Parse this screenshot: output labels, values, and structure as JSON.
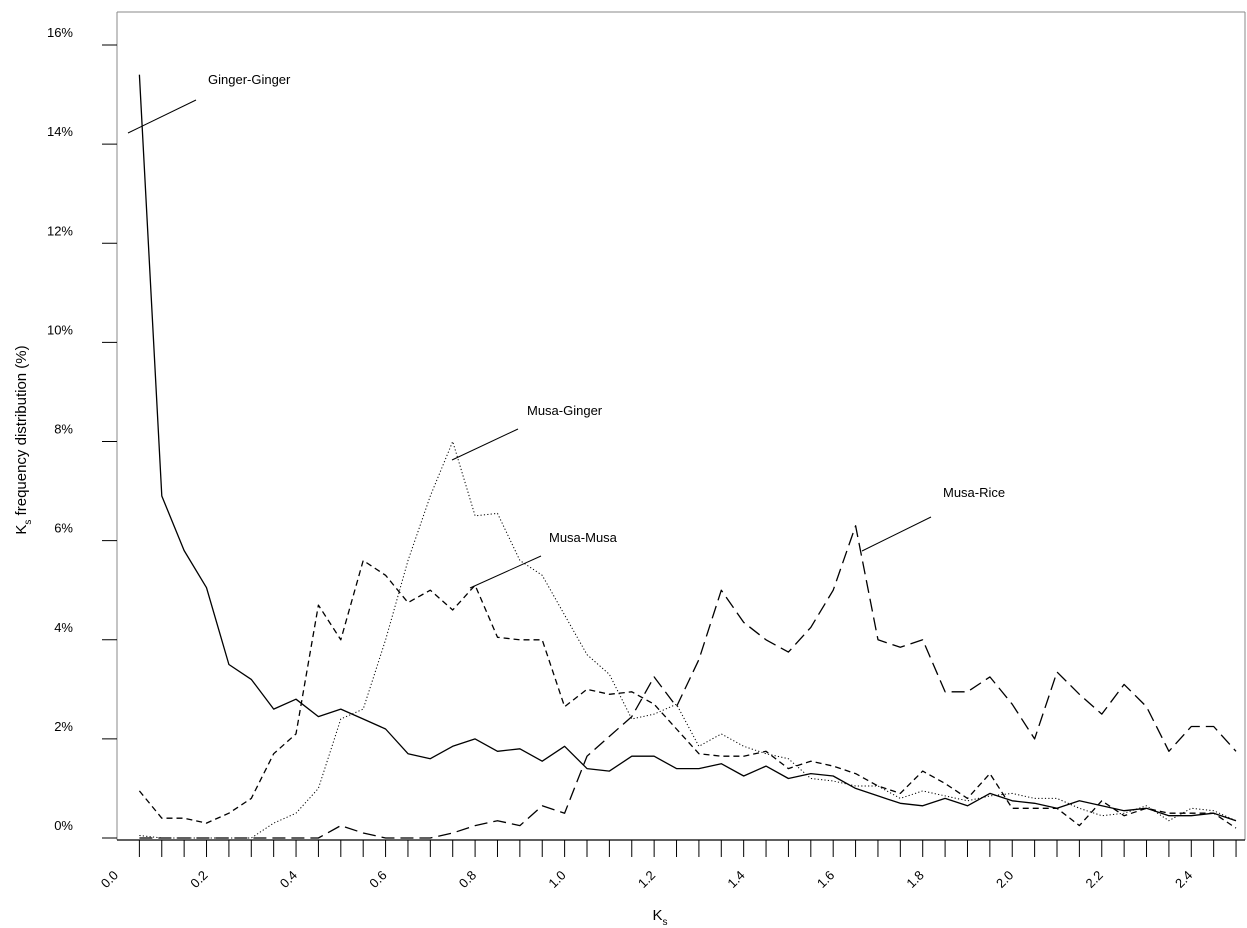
{
  "chart_data": {
    "type": "line",
    "xlabel": "K",
    "xlabel_sub": "s",
    "ylabel_prefix": "K",
    "ylabel_sub": "s",
    "ylabel_rest": " frequency distribution (%)",
    "xlim": [
      0.0,
      2.52
    ],
    "ylim": [
      0,
      16
    ],
    "x_ticks": [
      "0.0",
      "0.2",
      "0.4",
      "0.6",
      "0.8",
      "1.0",
      "1.2",
      "1.4",
      "1.6",
      "1.8",
      "2.0",
      "2.2",
      "2.4"
    ],
    "y_ticks": [
      "0%",
      "2%",
      "4%",
      "6%",
      "8%",
      "10%",
      "12%",
      "14%",
      "16%"
    ],
    "grid": false,
    "x": [
      0.05,
      0.1,
      0.15,
      0.2,
      0.25,
      0.3,
      0.35,
      0.4,
      0.45,
      0.5,
      0.55,
      0.6,
      0.65,
      0.7,
      0.75,
      0.8,
      0.85,
      0.9,
      0.95,
      1.0,
      1.05,
      1.1,
      1.15,
      1.2,
      1.25,
      1.3,
      1.35,
      1.4,
      1.45,
      1.5,
      1.55,
      1.6,
      1.65,
      1.7,
      1.75,
      1.8,
      1.85,
      1.9,
      1.95,
      2.0,
      2.05,
      2.1,
      2.15,
      2.2,
      2.25,
      2.3,
      2.35,
      2.4,
      2.45,
      2.5
    ],
    "series": [
      {
        "name": "Ginger-Ginger",
        "style": "solid",
        "values": [
          15.4,
          6.9,
          5.8,
          5.05,
          3.5,
          3.2,
          2.6,
          2.8,
          2.45,
          2.6,
          2.4,
          2.2,
          1.7,
          1.6,
          1.85,
          2.0,
          1.75,
          1.8,
          1.55,
          1.85,
          1.4,
          1.35,
          1.65,
          1.65,
          1.4,
          1.4,
          1.5,
          1.25,
          1.45,
          1.2,
          1.3,
          1.25,
          1.0,
          0.85,
          0.7,
          0.65,
          0.8,
          0.65,
          0.9,
          0.75,
          0.7,
          0.6,
          0.75,
          0.65,
          0.55,
          0.6,
          0.45,
          0.45,
          0.5,
          0.35
        ]
      },
      {
        "name": "Musa-Musa",
        "style": "short-dash",
        "values": [
          0.95,
          0.4,
          0.4,
          0.3,
          0.5,
          0.8,
          1.7,
          2.1,
          4.7,
          4.0,
          5.6,
          5.3,
          4.75,
          5.0,
          4.6,
          5.1,
          4.05,
          4.0,
          4.0,
          2.65,
          3.0,
          2.9,
          2.95,
          2.7,
          2.2,
          1.7,
          1.65,
          1.65,
          1.75,
          1.4,
          1.55,
          1.45,
          1.3,
          1.05,
          0.9,
          1.35,
          1.1,
          0.8,
          1.3,
          0.6,
          0.6,
          0.6,
          0.25,
          0.75,
          0.45,
          0.6,
          0.5,
          0.5,
          0.5,
          0.2
        ]
      },
      {
        "name": "Musa-Ginger",
        "style": "dotted",
        "values": [
          0.05,
          0.0,
          0.0,
          0.0,
          0.0,
          0.0,
          0.3,
          0.5,
          1.0,
          2.4,
          2.6,
          4.0,
          5.6,
          6.9,
          8.0,
          6.5,
          6.55,
          5.6,
          5.3,
          4.5,
          3.7,
          3.3,
          2.4,
          2.5,
          2.7,
          1.85,
          2.1,
          1.85,
          1.7,
          1.6,
          1.2,
          1.15,
          1.05,
          1.05,
          0.8,
          0.95,
          0.85,
          0.75,
          0.85,
          0.9,
          0.8,
          0.8,
          0.6,
          0.45,
          0.5,
          0.65,
          0.35,
          0.6,
          0.55,
          0.35
        ]
      },
      {
        "name": "Musa-Rice",
        "style": "long-dash",
        "values": [
          0.0,
          0.0,
          0.0,
          0.0,
          0.0,
          0.0,
          0.0,
          0.0,
          0.0,
          0.25,
          0.1,
          0.0,
          0.0,
          0.0,
          0.1,
          0.25,
          0.35,
          0.25,
          0.65,
          0.5,
          1.65,
          2.05,
          2.45,
          3.25,
          2.65,
          3.6,
          5.0,
          4.35,
          4.0,
          3.75,
          4.25,
          5.0,
          6.3,
          4.0,
          3.85,
          4.0,
          2.95,
          2.95,
          3.25,
          2.7,
          2.0,
          3.35,
          2.9,
          2.5,
          3.1,
          2.65,
          1.75,
          2.25,
          2.25,
          1.75
        ]
      }
    ],
    "annotations": [
      {
        "text": "Ginger-Ginger",
        "series": "Ginger-Ginger"
      },
      {
        "text": "Musa-Ginger",
        "series": "Musa-Ginger"
      },
      {
        "text": "Musa-Musa",
        "series": "Musa-Musa"
      },
      {
        "text": "Musa-Rice",
        "series": "Musa-Rice"
      }
    ]
  }
}
